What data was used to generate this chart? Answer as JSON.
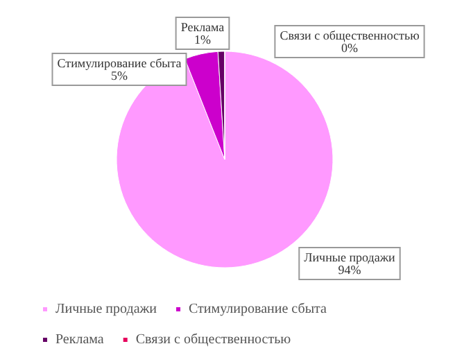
{
  "chart_data": {
    "type": "pie",
    "categories": [
      "Личные продажи",
      "Стимулирование сбыта",
      "Реклама",
      "Связи с общественностью"
    ],
    "values": [
      94,
      5,
      1,
      0
    ],
    "colors": [
      "#ff99ff",
      "#cc00cc",
      "#660066",
      "#e6005c"
    ],
    "value_labels": [
      "94%",
      "5%",
      "1%",
      "0%"
    ],
    "legend": "bottom"
  }
}
